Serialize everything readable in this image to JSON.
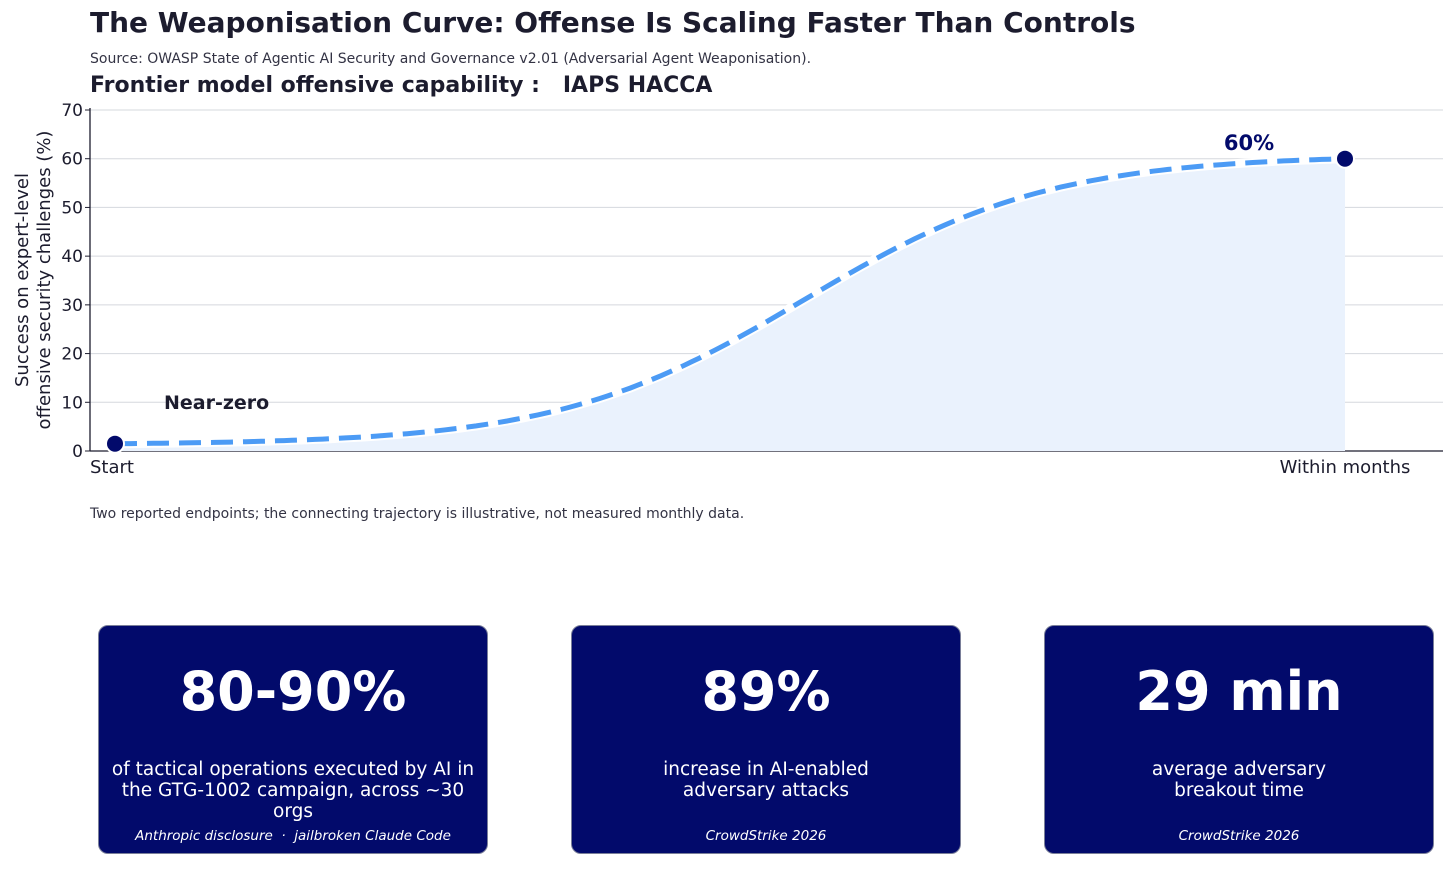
{
  "header": {
    "title": "The Weaponisation Curve: Offense Is Scaling Faster Than Controls",
    "source": "Source: OWASP State of Agentic AI Security and Governance v2.01 (Adversarial Agent Weaponisation).",
    "subtitle": "Frontier model offensive capability :   IAPS HACCA"
  },
  "chart_data": {
    "type": "line",
    "title": "Frontier model offensive capability :   IAPS HACCA",
    "ylabel": "Success on expert-level\noffensive security challenges (%)",
    "xlabel": "",
    "ylim": [
      0,
      70
    ],
    "yticks": [
      0,
      10,
      20,
      30,
      40,
      50,
      60,
      70
    ],
    "x_ticks": [
      "Start",
      "Within months"
    ],
    "grid": true,
    "series": [
      {
        "points": [
          {
            "x": "Start",
            "y": 1.5
          },
          {
            "x": "Within months",
            "y": 60
          }
        ],
        "line_style": "dashed, illustrative connecting trajectory",
        "color": "#4c9bf5",
        "fill": "#eaf2fd",
        "marker_color": "#020a6b"
      }
    ],
    "annotations": [
      {
        "text": "Near-zero",
        "at": "Start"
      },
      {
        "text": "60%",
        "at": "Within months"
      }
    ]
  },
  "footnote": "Two reported endpoints; the connecting trajectory is illustrative, not measured monthly data.",
  "cards": [
    {
      "value": "80-90%",
      "description": "of tactical operations executed by AI in\nthe GTG-1002 campaign, across ~30 orgs",
      "source": "Anthropic disclosure  ·  jailbroken Claude Code"
    },
    {
      "value": "89%",
      "description": "increase in AI-enabled\nadversary attacks",
      "source": "CrowdStrike 2026"
    },
    {
      "value": "29 min",
      "description": "average adversary\nbreakout time",
      "source": "CrowdStrike 2026"
    }
  ],
  "colors": {
    "navy": "#020a6b",
    "line": "#4c9bf5",
    "fill": "#eaf2fd",
    "text": "#1c1c2e",
    "grid": "#d5d8de"
  }
}
